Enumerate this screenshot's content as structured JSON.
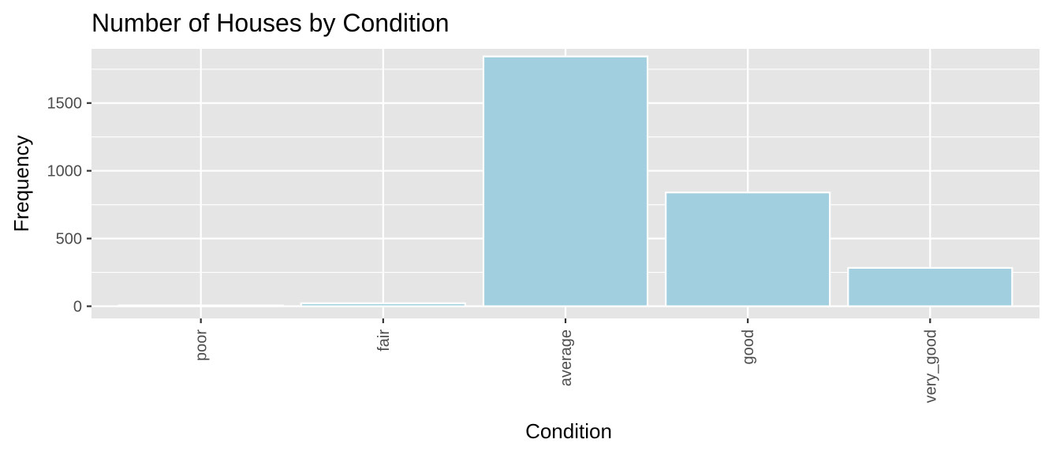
{
  "chart_data": {
    "type": "bar",
    "title": "Number of Houses by Condition",
    "xlabel": "Condition",
    "ylabel": "Frequency",
    "categories": [
      "poor",
      "fair",
      "average",
      "good",
      "very_good"
    ],
    "values": [
      6,
      22,
      1844,
      840,
      283
    ],
    "ylim": [
      -90,
      1900
    ],
    "yticks": [
      0,
      500,
      1000,
      1500
    ],
    "grid": true,
    "legend": "none",
    "colors": {
      "bar_fill": "#a2cfe0",
      "bar_stroke": "#ffffff",
      "panel": "#e5e5e5",
      "grid": "#ffffff",
      "tick_text": "#4d4d4d",
      "tick_mark": "#333333"
    }
  }
}
